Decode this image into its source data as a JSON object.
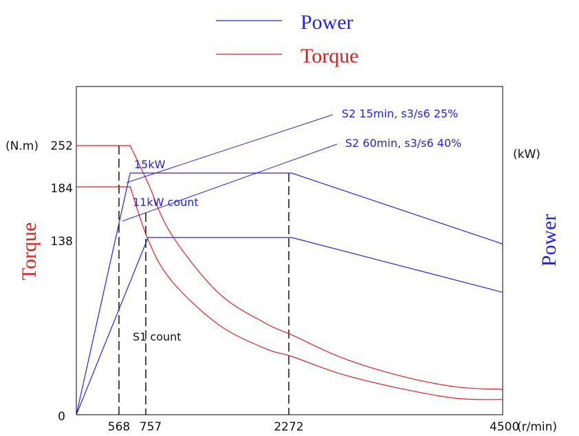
{
  "colors": {
    "power": "#2323e6",
    "torque": "#e61c1c",
    "frame": "#000000",
    "guide": "#111111"
  },
  "chart_data": {
    "type": "line",
    "legend": {
      "placement": "top-center",
      "entries": [
        {
          "label": "Power",
          "color": "#2323e6"
        },
        {
          "label": "Torque",
          "color": "#e61c1c"
        }
      ]
    },
    "left_axis": {
      "title": "Torque",
      "unit_label": "(N.m)",
      "range": [
        0,
        300
      ],
      "ticks": [
        "0",
        "138",
        "184",
        "252"
      ],
      "tick_values": [
        0,
        138,
        184,
        252
      ]
    },
    "right_axis": {
      "title": "Power",
      "unit_label": "(kW)"
    },
    "x_axis": {
      "unit_label": "(r/min)",
      "range": [
        0,
        4500
      ],
      "ticks": [
        "568",
        "757",
        "2272",
        "4500"
      ],
      "tick_values": [
        568,
        757,
        2272,
        4500
      ]
    },
    "grid": false,
    "reference_lines_x": [
      568,
      757,
      2272
    ],
    "annotations": {
      "s2_15": "S2 15min, s3/s6 25%",
      "s2_60": "S2 60min, s3/s6 40%",
      "kw15": "15kW",
      "kw11": "11kW count",
      "s1": "S1 count"
    },
    "series": [
      {
        "name": "Torque",
        "axis": "left",
        "x": [
          0,
          568,
          757,
          1000,
          1500,
          2000,
          2272,
          2800,
          3400,
          4000,
          4500
        ],
        "y": [
          252,
          252,
          190,
          143,
          96,
          72,
          63,
          45,
          31,
          22,
          20
        ]
      },
      {
        "name": "Torque",
        "axis": "left",
        "x": [
          0,
          568,
          757,
          1000,
          1500,
          2000,
          2272,
          2800,
          3400,
          4000,
          4500
        ],
        "y": [
          184,
          184,
          138,
          106,
          71,
          52,
          46,
          32,
          21,
          13,
          12
        ]
      },
      {
        "name": "Power",
        "axis": "right",
        "x": [
          0,
          568,
          2272,
          4500
        ],
        "y": [
          0,
          15,
          15,
          10.6
        ]
      },
      {
        "name": "Power",
        "axis": "right",
        "x": [
          0,
          757,
          2272,
          4500
        ],
        "y": [
          0,
          11,
          11,
          7.6
        ]
      }
    ]
  }
}
